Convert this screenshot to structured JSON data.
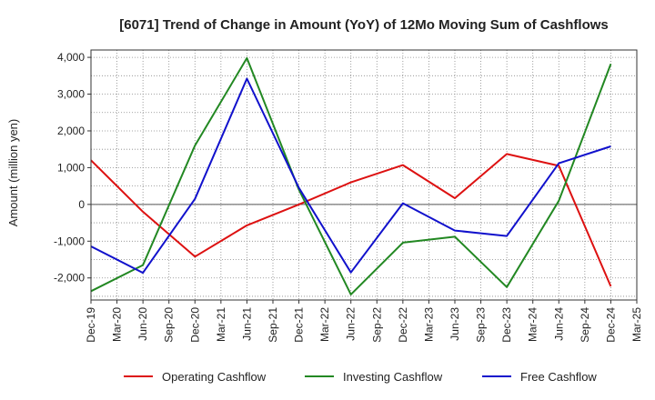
{
  "chart_data": {
    "type": "line",
    "title": "[6071]  Trend of Change in Amount (YoY) of 12Mo Moving Sum of Cashflows",
    "xlabel": "",
    "ylabel": "Amount (million yen)",
    "ylim": [
      -2600,
      4200
    ],
    "yticks": [
      4000,
      3000,
      2000,
      1000,
      0,
      -1000,
      -2000
    ],
    "ytick_labels": [
      "4,000",
      "3,000",
      "2,000",
      "1,000",
      "0",
      "-1,000",
      "-2,000"
    ],
    "x_labels": [
      "Dec-19",
      "Mar-20",
      "Jun-20",
      "Sep-20",
      "Dec-20",
      "Mar-21",
      "Jun-21",
      "Sep-21",
      "Dec-21",
      "Mar-22",
      "Jun-22",
      "Sep-22",
      "Dec-22",
      "Mar-23",
      "Jun-23",
      "Sep-23",
      "Dec-23",
      "Mar-24",
      "Jun-24",
      "Sep-24",
      "Dec-24",
      "Mar-25"
    ],
    "grid": true,
    "legend_position": "bottom",
    "series": [
      {
        "name": "Operating Cashflow",
        "color": "#dd1111",
        "points": [
          [
            0,
            1200
          ],
          [
            2,
            -200
          ],
          [
            4,
            -1420
          ],
          [
            6,
            -570
          ],
          [
            8,
            0
          ],
          [
            10,
            600
          ],
          [
            12,
            1070
          ],
          [
            14,
            170
          ],
          [
            16,
            1370
          ],
          [
            18,
            1050
          ],
          [
            20,
            -2230
          ]
        ]
      },
      {
        "name": "Investing Cashflow",
        "color": "#228822",
        "points": [
          [
            0,
            -2360
          ],
          [
            2,
            -1650
          ],
          [
            4,
            1600
          ],
          [
            6,
            3980
          ],
          [
            8,
            400
          ],
          [
            10,
            -2450
          ],
          [
            12,
            -1040
          ],
          [
            14,
            -880
          ],
          [
            16,
            -2250
          ],
          [
            18,
            100
          ],
          [
            20,
            3820
          ]
        ]
      },
      {
        "name": "Free Cashflow",
        "color": "#1111cc",
        "points": [
          [
            0,
            -1140
          ],
          [
            2,
            -1860
          ],
          [
            4,
            150
          ],
          [
            6,
            3420
          ],
          [
            8,
            450
          ],
          [
            10,
            -1850
          ],
          [
            12,
            30
          ],
          [
            14,
            -710
          ],
          [
            16,
            -860
          ],
          [
            18,
            1120
          ],
          [
            20,
            1580
          ]
        ]
      }
    ]
  }
}
